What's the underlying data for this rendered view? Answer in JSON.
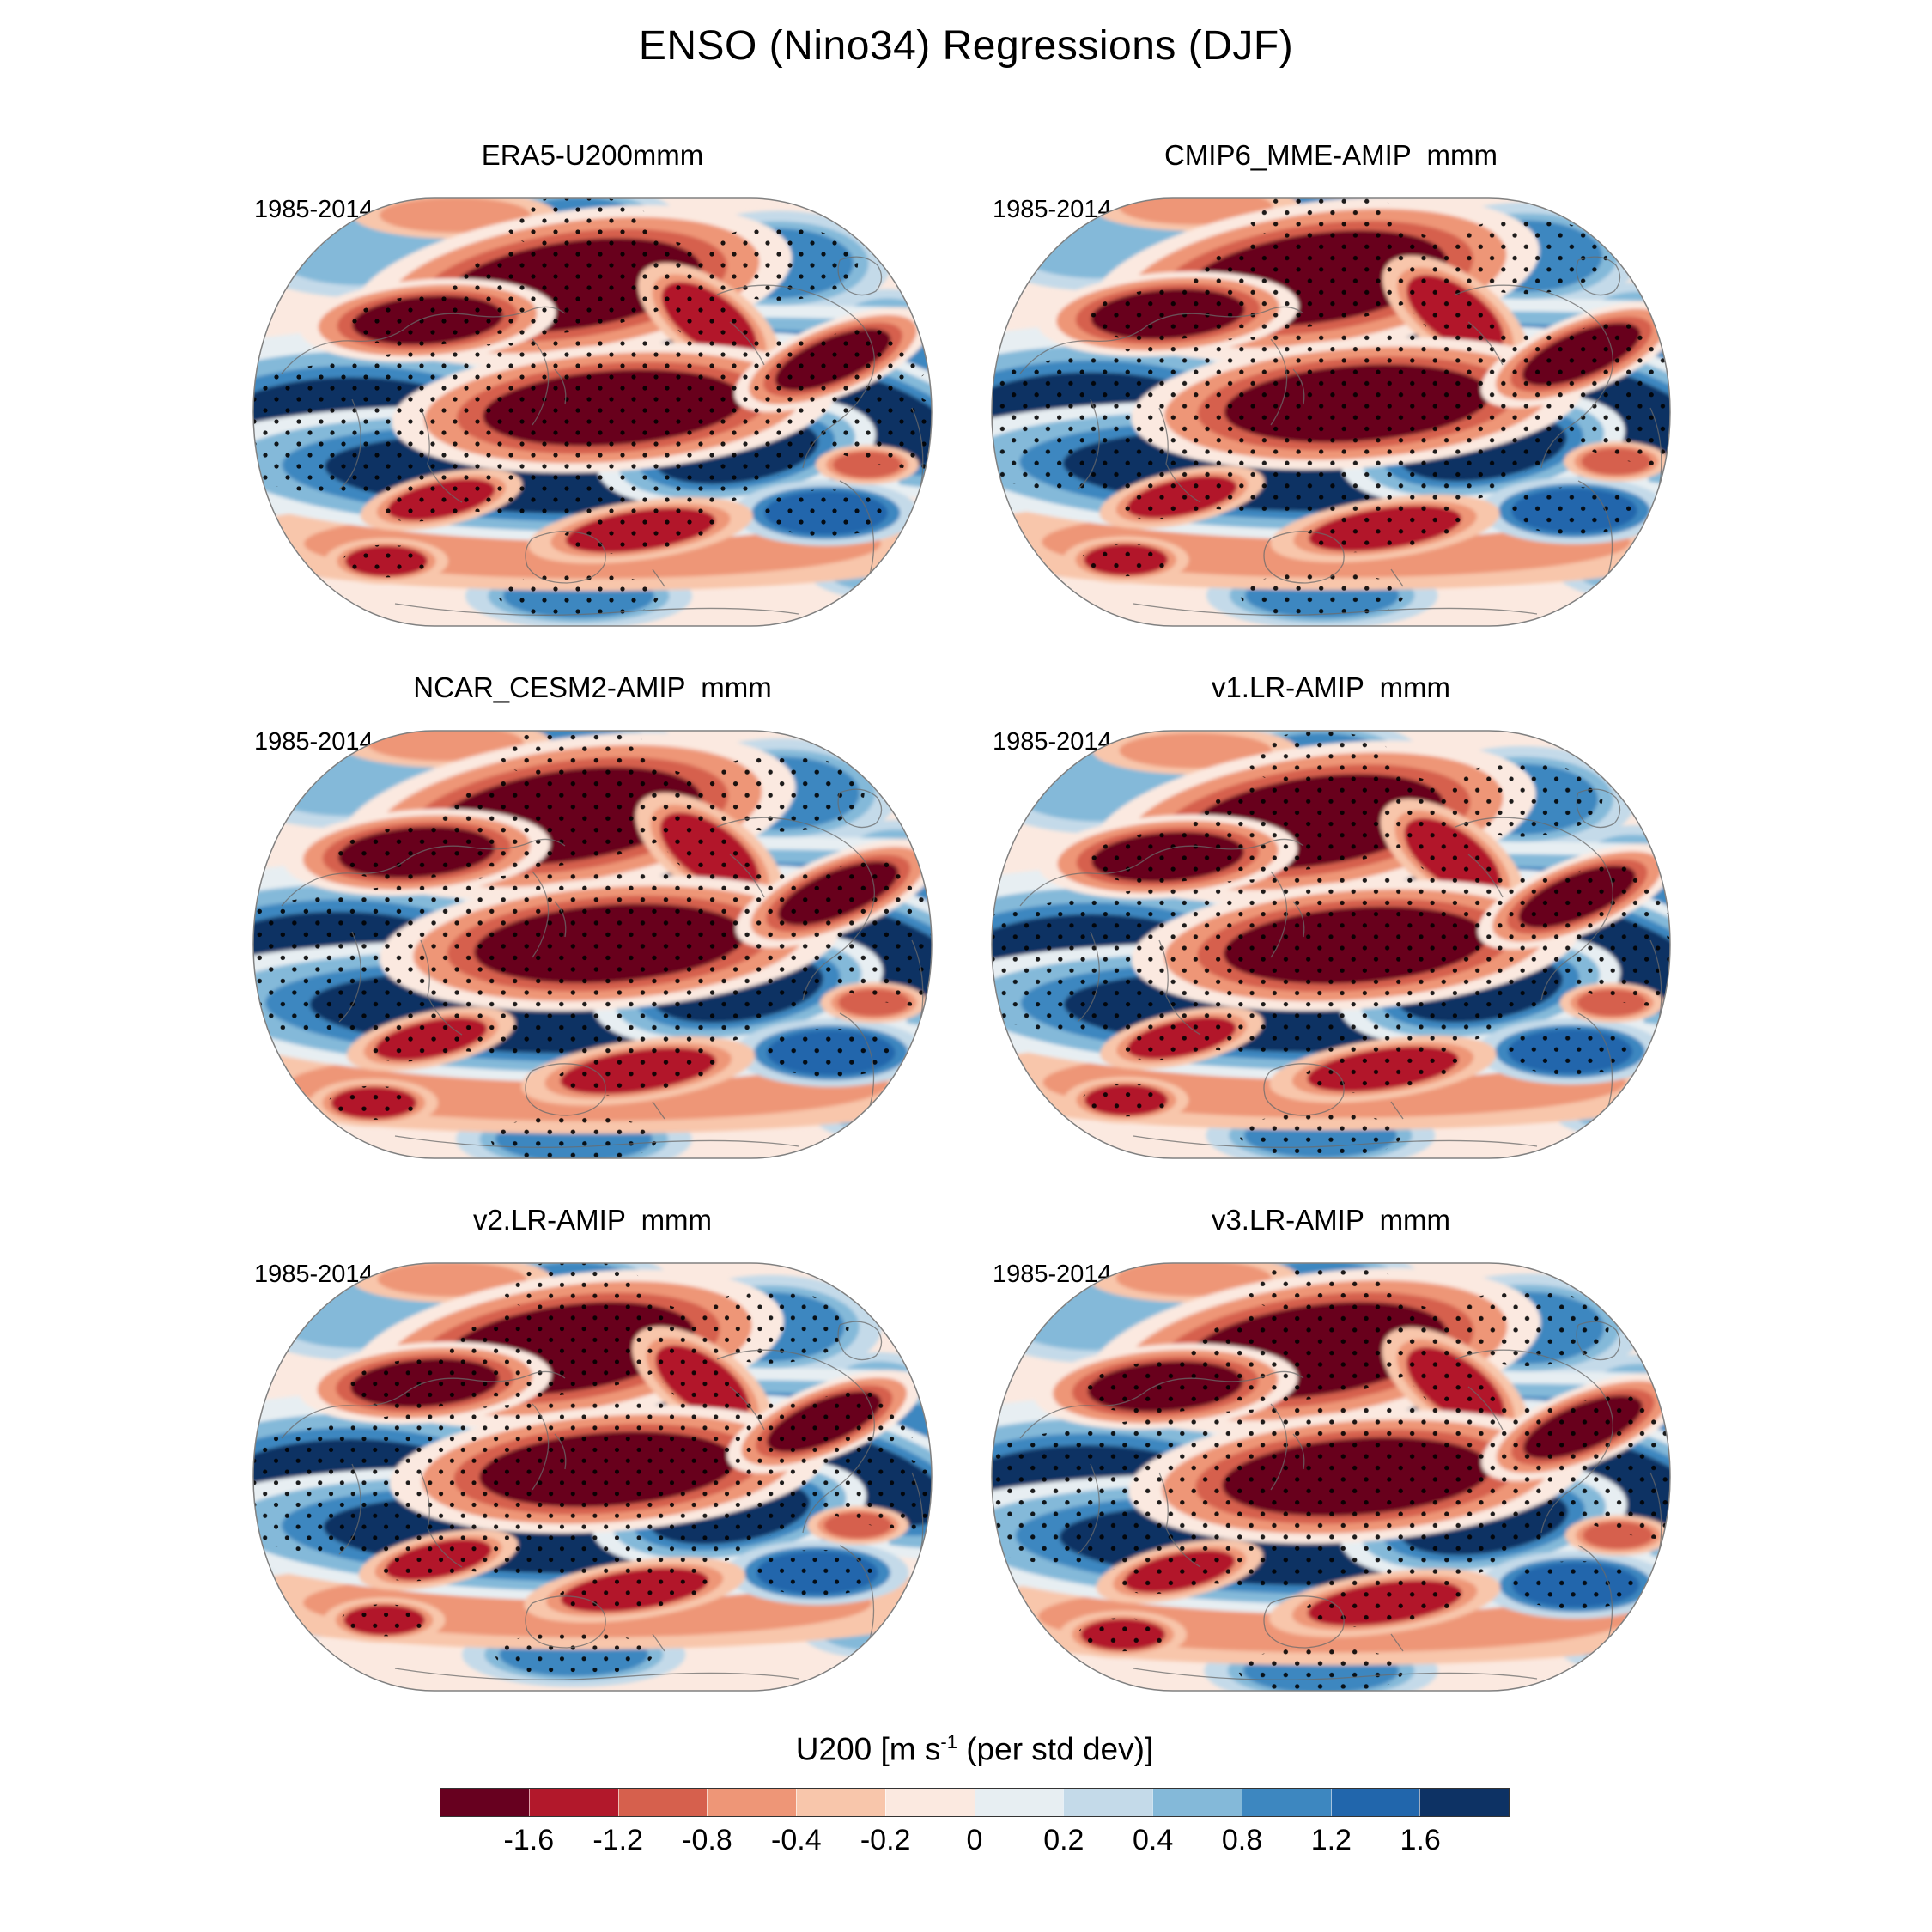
{
  "figure": {
    "title": "ENSO (Nino34) Regressions (DJF)"
  },
  "panels": [
    {
      "id": "era5",
      "title": "ERA5-U200mmm",
      "period": "1985-2014"
    },
    {
      "id": "cmip6",
      "title": "CMIP6_MME-AMIP  mmm",
      "period": "1985-2014"
    },
    {
      "id": "ncar",
      "title": "NCAR_CESM2-AMIP  mmm",
      "period": "1985-2014"
    },
    {
      "id": "v1lr",
      "title": "v1.LR-AMIP  mmm",
      "period": "1985-2014"
    },
    {
      "id": "v2lr",
      "title": "v2.LR-AMIP  mmm",
      "period": "1985-2014"
    },
    {
      "id": "v3lr",
      "title": "v3.LR-AMIP  mmm",
      "period": "1985-2014"
    }
  ],
  "colorbar": {
    "label_prefix": "U200 [m s",
    "label_sup": "-1",
    "label_suffix": " (per std dev)]",
    "full_label": "U200 [m s-1 (per std dev)]",
    "ticks": [
      "-1.6",
      "-1.2",
      "-0.8",
      "-0.4",
      "-0.2",
      "0",
      "0.2",
      "0.4",
      "0.8",
      "1.2",
      "1.6"
    ],
    "colors": [
      "#67001f",
      "#b2182b",
      "#d6604d",
      "#ee9677",
      "#f8c6ab",
      "#fbe9e0",
      "#e7eef2",
      "#c4dae9",
      "#84b9d9",
      "#3d87c0",
      "#2166ac",
      "#0d3264"
    ]
  },
  "chart_data": {
    "type": "heatmap",
    "subtype": "global filled-contour regression maps (Winkel-Tripel-like projection), 3 rows x 2 columns",
    "title": "ENSO (Nino34) Regressions (DJF)",
    "variable": "U200",
    "units": "m s-1 (per std dev)",
    "period": "1985-2014",
    "panels": [
      "ERA5-U200mmm",
      "CMIP6_MME-AMIP  mmm",
      "NCAR_CESM2-AMIP  mmm",
      "v1.LR-AMIP  mmm",
      "v2.LR-AMIP  mmm",
      "v3.LR-AMIP  mmm"
    ],
    "levels": [
      -1.6,
      -1.2,
      -0.8,
      -0.4,
      -0.2,
      0,
      0.2,
      0.4,
      0.8,
      1.2,
      1.6
    ],
    "palette": [
      "#67001f",
      "#b2182b",
      "#d6604d",
      "#ee9677",
      "#f8c6ab",
      "#fbe9e0",
      "#e7eef2",
      "#c4dae9",
      "#84b9d9",
      "#3d87c0",
      "#2166ac",
      "#0d3264"
    ],
    "stippling_present": true,
    "stippling_style": "black dot lattice over strong anomaly regions",
    "features": [
      {
        "name": "polar-light-blue-nw",
        "x": 16,
        "y": 13,
        "rx": 13,
        "ry": 8,
        "rot": 0,
        "level": 0.5,
        "stipple": false
      },
      {
        "name": "polar-blue-north",
        "x": 48,
        "y": 7,
        "rx": 10,
        "ry": 6,
        "rot": 0,
        "level": 0.9,
        "stipple": true
      },
      {
        "name": "polar-blue-ne",
        "x": 77,
        "y": 16,
        "rx": 11,
        "ry": 8,
        "rot": 0,
        "level": 0.9,
        "stipple": true
      },
      {
        "name": "ne-edge-light-blue",
        "x": 93,
        "y": 30,
        "rx": 7,
        "ry": 6,
        "rot": 0,
        "level": 0.5,
        "stipple": false
      },
      {
        "name": "top-edge-red-wisp",
        "x": 30,
        "y": 5,
        "rx": 11,
        "ry": 4,
        "rot": 0,
        "level": -0.6,
        "stipple": false
      },
      {
        "name": "left-edge-pale-spot",
        "x": 5,
        "y": 53,
        "rx": 7,
        "ry": 8,
        "rot": 0,
        "level": 0.1,
        "stipple": false
      },
      {
        "name": "sw-light-blue",
        "x": 8,
        "y": 80,
        "rx": 9,
        "ry": 6,
        "rot": 0,
        "level": 0.5,
        "stipple": false
      },
      {
        "name": "south-center-blue",
        "x": 48,
        "y": 92,
        "rx": 11,
        "ry": 5,
        "rot": 0,
        "level": 0.9,
        "stipple": true
      },
      {
        "name": "se-light-blue",
        "x": 92,
        "y": 86,
        "rx": 8,
        "ry": 5,
        "rot": 0,
        "level": 0.5,
        "stipple": false
      },
      {
        "name": "nh-jet-band",
        "x": 46,
        "y": 44,
        "rx": 50,
        "ry": 10,
        "rot": -3,
        "level": 1.8,
        "stipple": true
      },
      {
        "name": "nh-jet-west-bulge",
        "x": 15,
        "y": 55,
        "rx": 21,
        "ry": 13,
        "rot": 0,
        "level": 1.8,
        "stipple": true
      },
      {
        "name": "nh-jet-east-arm",
        "x": 89,
        "y": 51,
        "rx": 15,
        "ry": 9,
        "rot": 18,
        "level": 1.8,
        "stipple": true
      },
      {
        "name": "bottom-red-arc",
        "x": 50,
        "y": 80,
        "rx": 42,
        "ry": 8,
        "rot": 0,
        "level": -0.6,
        "stipple": false
      },
      {
        "name": "sh-jet-band",
        "x": 42,
        "y": 64,
        "rx": 31,
        "ry": 9,
        "rot": 2,
        "level": 1.8,
        "stipple": true
      },
      {
        "name": "sh-jet-east-arm",
        "x": 71,
        "y": 59,
        "rx": 12,
        "ry": 7,
        "rot": -8,
        "level": 1.8,
        "stipple": true
      },
      {
        "name": "se-navy-blob",
        "x": 84,
        "y": 73,
        "rx": 9,
        "ry": 5,
        "rot": 0,
        "level": 1.5,
        "stipple": true
      },
      {
        "name": "north-pacific-dark-red",
        "x": 47,
        "y": 21,
        "rx": 19,
        "ry": 10,
        "rot": -8,
        "level": -1.8,
        "stipple": true
      },
      {
        "name": "labrador-red-arm",
        "x": 67,
        "y": 29,
        "rx": 8,
        "ry": 6,
        "rot": 35,
        "level": -1.4,
        "stipple": true
      },
      {
        "name": "asia-dark-red",
        "x": 26,
        "y": 29,
        "rx": 11,
        "ry": 5.5,
        "rot": -4,
        "level": -1.8,
        "stipple": true
      },
      {
        "name": "tropical-dark-red",
        "x": 53,
        "y": 49,
        "rx": 19,
        "ry": 8.5,
        "rot": -4,
        "level": -1.8,
        "stipple": true
      },
      {
        "name": "atlantic-dark-red",
        "x": 85,
        "y": 38,
        "rx": 9,
        "ry": 5,
        "rot": -22,
        "level": -1.8,
        "stipple": true
      },
      {
        "name": "sh-storm-red-core",
        "x": 57,
        "y": 77,
        "rx": 11,
        "ry": 4.5,
        "rot": -8,
        "level": -1.4,
        "stipple": true
      },
      {
        "name": "sh-west-red",
        "x": 28,
        "y": 70,
        "rx": 8,
        "ry": 4,
        "rot": -12,
        "level": -1.4,
        "stipple": true
      },
      {
        "name": "sw-dark-red",
        "x": 20,
        "y": 84,
        "rx": 6,
        "ry": 3.5,
        "rot": 0,
        "level": -1.4,
        "stipple": true
      },
      {
        "name": "se-small-red",
        "x": 90,
        "y": 62,
        "rx": 5,
        "ry": 3,
        "rot": 0,
        "level": -0.9,
        "stipple": false
      }
    ]
  }
}
